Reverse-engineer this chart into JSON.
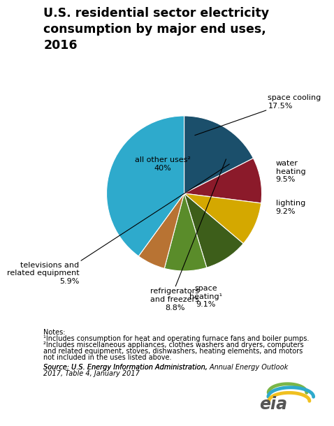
{
  "title": "U.S. residential sector electricity\nconsumption by major end uses,\n2016",
  "slices": [
    {
      "label": "space cooling\n17.5%",
      "value": 17.5,
      "color": "#1b4f6b"
    },
    {
      "label": "water\nheating\n9.5%",
      "value": 9.5,
      "color": "#8b1a2a"
    },
    {
      "label": "lighting\n9.2%",
      "value": 9.2,
      "color": "#d4a800"
    },
    {
      "label": "space\nheating¹\n9.1%",
      "value": 9.1,
      "color": "#3d5e1a"
    },
    {
      "label": "refrigerators\nand freezers\n8.8%",
      "value": 8.8,
      "color": "#5a8c2a"
    },
    {
      "label": "televisions and\nrelated equipment\n5.9%",
      "value": 5.9,
      "color": "#b87333"
    },
    {
      "label": "all other uses²\n40%",
      "value": 40.0,
      "color": "#2eaacc"
    }
  ],
  "start_angle": 90,
  "note1": "¹Includes consumption for heat and operating furnace fans and boiler pumps.",
  "note2": "²Includes miscellaneous appliances, clothes washers and dryers, computers\nand related equipment, stoves, dishwashers, heating elements, and motors\nnot included in the uses listed above.",
  "source": "Source: U.S. Energy Information Administration, Annual Energy Outlook\n2017, Table 4, January 2017",
  "bg_color": "#ffffff",
  "title_fontsize": 12.5,
  "label_fontsize": 8.0,
  "notes_fontsize": 7.0
}
